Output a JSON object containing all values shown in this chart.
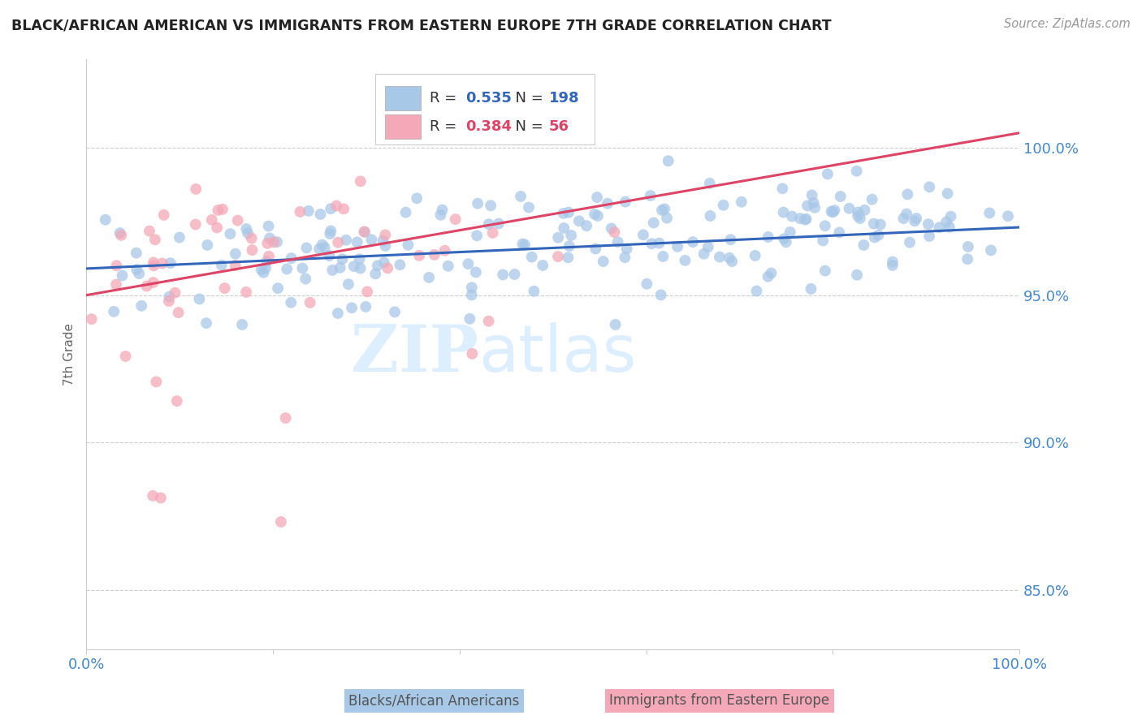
{
  "title": "BLACK/AFRICAN AMERICAN VS IMMIGRANTS FROM EASTERN EUROPE 7TH GRADE CORRELATION CHART",
  "source": "Source: ZipAtlas.com",
  "ylabel": "7th Grade",
  "xlim": [
    0.0,
    1.0
  ],
  "ylim": [
    0.83,
    1.03
  ],
  "ytick_labels": [
    "85.0%",
    "90.0%",
    "95.0%",
    "100.0%"
  ],
  "ytick_values": [
    0.85,
    0.9,
    0.95,
    1.0
  ],
  "blue_R": 0.535,
  "blue_N": 198,
  "pink_R": 0.384,
  "pink_N": 56,
  "blue_color": "#a8c8e8",
  "pink_color": "#f4a8b8",
  "blue_line_color": "#3366bb",
  "pink_line_color": "#dd4466",
  "blue_number_color": "#3366bb",
  "pink_number_color": "#dd4466",
  "legend_label_blue": "Blacks/African Americans",
  "legend_label_pink": "Immigrants from Eastern Europe",
  "title_color": "#222222",
  "axis_label_color": "#666666",
  "tick_label_color": "#4488cc",
  "grid_color": "#cccccc",
  "watermark_zip": "ZIP",
  "watermark_atlas": "atlas",
  "watermark_color": "#ddeeff",
  "source_color": "#999999"
}
